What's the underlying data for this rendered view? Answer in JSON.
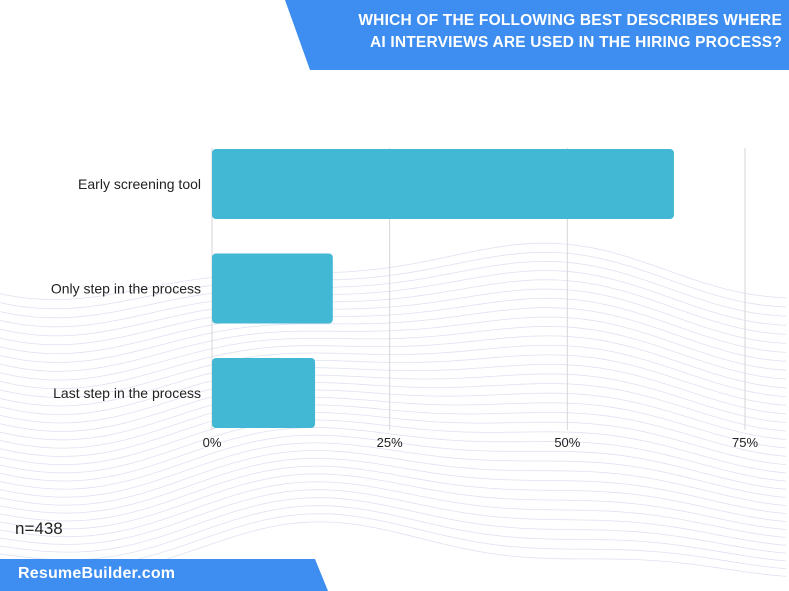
{
  "header": {
    "title_line1": "WHICH OF THE FOLLOWING BEST DESCRIBES WHERE",
    "title_line2": "AI INTERVIEWS ARE USED IN THE HIRING PROCESS?"
  },
  "footer": {
    "sample_size": "n=438",
    "brand": "ResumeBuilder.com"
  },
  "colors": {
    "accent": "#3d8ef0",
    "bar": "#42b8d4",
    "grid": "#d6d6d6",
    "text": "#222222"
  },
  "chart_data": {
    "type": "bar",
    "orientation": "horizontal",
    "categories": [
      "Early screening tool",
      "Only step in the process",
      "Last step in the process"
    ],
    "values": [
      65,
      17,
      14.5
    ],
    "x_ticks": [
      0,
      25,
      50,
      75
    ],
    "x_tick_labels": [
      "0%",
      "25%",
      "50%",
      "75%"
    ],
    "xlim": [
      0,
      75
    ],
    "grid": true,
    "legend": false
  }
}
